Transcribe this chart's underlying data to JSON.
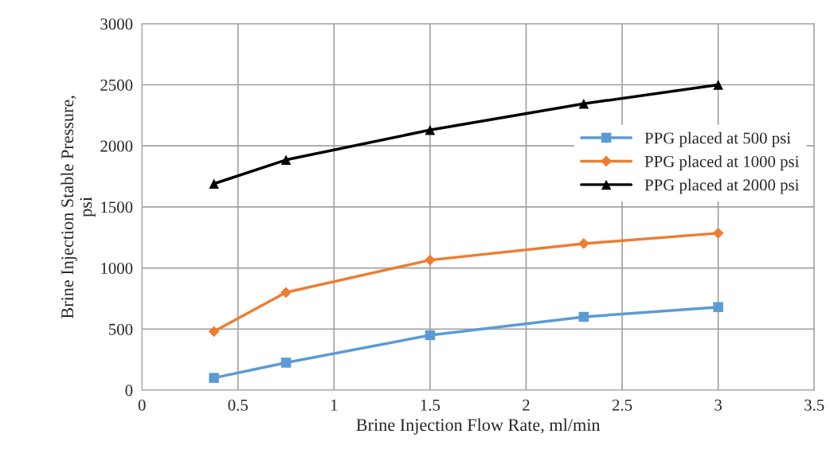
{
  "chart_data": {
    "type": "line",
    "xlabel": "Brine Injection Flow Rate, ml/min",
    "ylabel": "Brine Injection Stable Pressure,\npsi",
    "x": [
      0.375,
      0.75,
      1.5,
      2.3,
      3
    ],
    "series": [
      {
        "name": "PPG placed at 500 psi",
        "color": "#5b9bd5",
        "marker": "square",
        "values": [
          100,
          225,
          450,
          600,
          680
        ]
      },
      {
        "name": "PPG placed at 1000 psi",
        "color": "#ed7d31",
        "marker": "diamond",
        "values": [
          480,
          800,
          1065,
          1200,
          1285
        ]
      },
      {
        "name": "PPG placed at 2000 psi",
        "color": "#000000",
        "marker": "triangle",
        "values": [
          1690,
          1885,
          2130,
          2345,
          2500
        ]
      }
    ],
    "xlim": [
      0,
      3.5
    ],
    "xticks": [
      0,
      0.5,
      1,
      1.5,
      2,
      2.5,
      3,
      3.5
    ],
    "ylim": [
      0,
      3000
    ],
    "yticks": [
      0,
      500,
      1000,
      1500,
      2000,
      2500,
      3000
    ],
    "grid": true,
    "legend": "right",
    "line_style": "solid"
  }
}
